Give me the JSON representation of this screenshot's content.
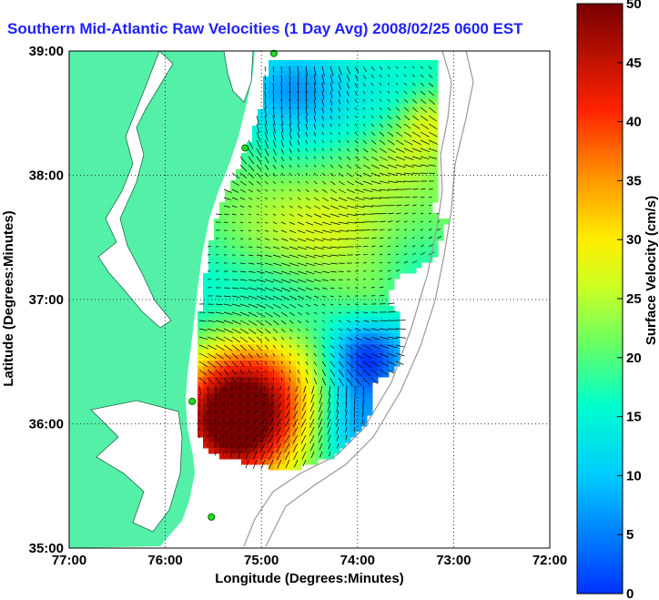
{
  "title": "Southern Mid-Atlantic Raw Velocities (1 Day Avg) 2008/02/25 0600 EST",
  "x_axis": {
    "label": "Longitude (Degrees:Minutes)",
    "ticks": [
      "77:00",
      "76:00",
      "75:00",
      "74:00",
      "73:00",
      "72:00"
    ]
  },
  "y_axis": {
    "label": "Latitude (Degrees:Minutes)",
    "ticks": [
      "35:00",
      "36:00",
      "37:00",
      "38:00",
      "39:00"
    ]
  },
  "colorbar": {
    "label": "Surface Velocity (cm/s)",
    "ticks": [
      "0",
      "5",
      "10",
      "15",
      "20",
      "25",
      "30",
      "35",
      "40",
      "45",
      "50"
    ],
    "min": 0,
    "max": 50
  },
  "colors": {
    "land": "#55f0a8",
    "water": "#ffffff",
    "title": "#1f1fff",
    "station": "#22dd22",
    "arrows": "#000000"
  },
  "map_extent": {
    "lon": [
      -77,
      -72
    ],
    "lat": [
      35,
      39
    ]
  },
  "stations": [
    {
      "lon": -74.87,
      "lat": 38.98
    },
    {
      "lon": -75.17,
      "lat": 38.22
    },
    {
      "lon": -75.72,
      "lat": 36.18
    },
    {
      "lon": -75.52,
      "lat": 35.25
    }
  ]
}
